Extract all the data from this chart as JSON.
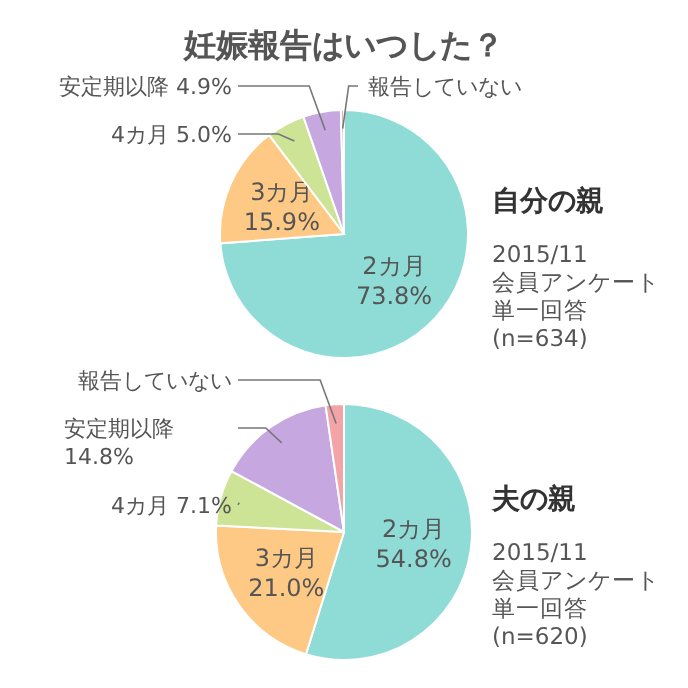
{
  "chart_data": [
    {
      "type": "pie",
      "title": "妊娠報告はいつした？",
      "subtitle": "自分の親",
      "categories": [
        "2カ月",
        "3カ月",
        "4カ月",
        "安定期以降",
        "報告していない"
      ],
      "values": [
        73.8,
        15.9,
        5.0,
        4.9,
        0.4
      ],
      "value_labels": [
        "73.8%",
        "15.9%",
        "5.0%",
        "4.9%",
        null
      ],
      "colors": [
        "#8fdcd7",
        "#fdc985",
        "#cde396",
        "#c6a7df",
        "#f4a3a6"
      ],
      "annotations": [
        "2015/11",
        "会員アンケート",
        "単一回答",
        "(n=634)"
      ]
    },
    {
      "type": "pie",
      "subtitle": "夫の親",
      "categories": [
        "2カ月",
        "3カ月",
        "4カ月",
        "安定期以降",
        "報告していない"
      ],
      "values": [
        54.8,
        21.0,
        7.1,
        14.8,
        2.3
      ],
      "value_labels": [
        "54.8%",
        "21.0%",
        "7.1%",
        "14.8%",
        null
      ],
      "colors": [
        "#8fdcd7",
        "#fdc985",
        "#cde396",
        "#c6a7df",
        "#f4a3a6"
      ],
      "annotations": [
        "2015/11",
        "会員アンケート",
        "単一回答",
        "(n=620)"
      ]
    }
  ]
}
